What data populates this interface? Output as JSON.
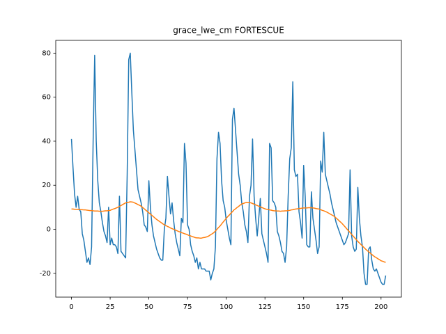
{
  "chart_data": {
    "type": "line",
    "title": "grace_lwe_cm FORTESCUE",
    "x": [
      0,
      1,
      2,
      3,
      4,
      5,
      6,
      7,
      8,
      9,
      10,
      11,
      12,
      13,
      14,
      15,
      16,
      17,
      18,
      19,
      20,
      21,
      22,
      23,
      24,
      25,
      26,
      27,
      28,
      29,
      30,
      31,
      32,
      33,
      34,
      35,
      36,
      37,
      38,
      39,
      40,
      41,
      42,
      43,
      44,
      45,
      46,
      47,
      48,
      49,
      50,
      51,
      52,
      53,
      54,
      55,
      56,
      57,
      58,
      59,
      60,
      61,
      62,
      63,
      64,
      65,
      66,
      67,
      68,
      69,
      70,
      71,
      72,
      73,
      74,
      75,
      76,
      77,
      78,
      79,
      80,
      81,
      82,
      83,
      84,
      85,
      86,
      87,
      88,
      89,
      90,
      91,
      92,
      93,
      94,
      95,
      96,
      97,
      98,
      99,
      100,
      101,
      102,
      103,
      104,
      105,
      106,
      107,
      108,
      109,
      110,
      111,
      112,
      113,
      114,
      115,
      116,
      117,
      118,
      119,
      120,
      121,
      122,
      123,
      124,
      125,
      126,
      127,
      128,
      129,
      130,
      131,
      132,
      133,
      134,
      135,
      136,
      137,
      138,
      139,
      140,
      141,
      142,
      143,
      144,
      145,
      146,
      147,
      148,
      149,
      150,
      151,
      152,
      153,
      154,
      155,
      156,
      157,
      158,
      159,
      160,
      161,
      162,
      163,
      164,
      165,
      166,
      167,
      168,
      169,
      170,
      171,
      172,
      173,
      174,
      175,
      176,
      177,
      178,
      179,
      180,
      181,
      182,
      183,
      184,
      185,
      186,
      187,
      188,
      189,
      190,
      191,
      192,
      193,
      194,
      195,
      196,
      197,
      198,
      199,
      200,
      201,
      202,
      203
    ],
    "series": [
      {
        "color": "#1f77b4",
        "values": [
          41,
          28,
          16,
          10,
          15,
          9,
          8,
          -2,
          -5,
          -10,
          -15,
          -13,
          -16,
          -8,
          40,
          79,
          40,
          22,
          12,
          8,
          3,
          -1,
          -3,
          -6,
          10,
          -7,
          -4,
          -7,
          -7,
          -8,
          -11,
          15,
          -10,
          -11,
          -12,
          -13,
          25,
          77,
          80,
          62,
          45,
          36,
          27,
          18,
          15,
          12,
          8,
          2,
          1,
          -1,
          22,
          10,
          2,
          -3,
          -6,
          -9,
          -11,
          -13,
          -14,
          -14,
          0,
          5,
          24,
          15,
          7,
          12,
          4,
          -2,
          -6,
          -9,
          -12,
          5,
          3,
          39,
          30,
          2,
          0,
          -7,
          -10,
          -12,
          -15,
          -13,
          -18,
          -15,
          -18,
          -18,
          -18,
          -19,
          -19,
          -19,
          -23,
          -20,
          -18,
          -8,
          32,
          44,
          39,
          22,
          13,
          10,
          4,
          0,
          -4,
          -7,
          50,
          55,
          45,
          35,
          25,
          20,
          12,
          8,
          2,
          -1,
          -6,
          15,
          20,
          41,
          15,
          5,
          -3,
          5,
          14,
          -2,
          -5,
          -8,
          -11,
          -15,
          39,
          37,
          13,
          12,
          10,
          -1,
          -3,
          -6,
          -10,
          -11,
          -15,
          -8,
          15,
          32,
          37,
          67,
          27,
          24,
          25,
          8,
          3,
          -4,
          29,
          15,
          -7,
          -8,
          -8,
          17,
          5,
          0,
          -5,
          -11,
          -8,
          31,
          26,
          44,
          25,
          22,
          19,
          16,
          12,
          9,
          6,
          3,
          1,
          -1,
          -3,
          -5,
          -7,
          -6,
          -4,
          -2,
          27,
          -3,
          -8,
          -10,
          -9,
          19,
          5,
          -3,
          -8,
          -20,
          -25,
          -25,
          -9,
          -8,
          -14,
          -18,
          -19,
          -18,
          -20,
          -22,
          -24,
          -25,
          -25,
          -21
        ]
      },
      {
        "color": "#ff7f0e",
        "values": [
          9.2,
          9.2,
          9.1,
          9.1,
          9.0,
          9.0,
          8.9,
          8.9,
          8.8,
          8.8,
          8.7,
          8.6,
          8.5,
          8.5,
          8.4,
          8.3,
          8.3,
          8.3,
          8.2,
          8.2,
          8.2,
          8.3,
          8.4,
          8.4,
          8.5,
          8.6,
          8.9,
          9.2,
          9.4,
          9.7,
          10.0,
          10.4,
          10.8,
          11.2,
          11.6,
          12.0,
          12.2,
          12.3,
          12.5,
          12.4,
          12.3,
          11.9,
          11.6,
          11.2,
          10.9,
          10.5,
          9.9,
          9.3,
          8.7,
          8.1,
          7.5,
          6.9,
          6.3,
          5.7,
          5.1,
          4.5,
          4.0,
          3.5,
          3.0,
          2.5,
          2.0,
          1.7,
          1.3,
          1.0,
          0.6,
          0.3,
          0.0,
          -0.3,
          -0.6,
          -0.9,
          -1.2,
          -1.5,
          -1.7,
          -2.0,
          -2.2,
          -2.5,
          -2.8,
          -3.0,
          -3.3,
          -3.5,
          -3.8,
          -3.9,
          -3.9,
          -4.0,
          -4.0,
          -3.8,
          -3.7,
          -3.5,
          -3.3,
          -2.9,
          -2.4,
          -2.0,
          -1.5,
          -0.8,
          0.0,
          0.8,
          1.5,
          2.4,
          3.3,
          4.1,
          5.0,
          5.8,
          6.5,
          7.3,
          8.0,
          8.8,
          9.3,
          9.9,
          10.4,
          11.0,
          11.5,
          11.7,
          12.0,
          12.2,
          12.1,
          12.1,
          12.0,
          11.7,
          11.4,
          11.1,
          10.8,
          10.5,
          10.2,
          9.9,
          9.6,
          9.3,
          9.1,
          9.0,
          8.8,
          8.7,
          8.5,
          8.4,
          8.4,
          8.3,
          8.3,
          8.2,
          8.3,
          8.3,
          8.4,
          8.4,
          8.5,
          8.6,
          8.8,
          8.9,
          9.1,
          9.2,
          9.3,
          9.4,
          9.5,
          9.6,
          9.7,
          9.7,
          9.7,
          9.8,
          9.8,
          9.8,
          9.7,
          9.6,
          9.4,
          9.3,
          9.2,
          8.9,
          8.6,
          8.4,
          8.1,
          7.8,
          7.4,
          7.0,
          6.6,
          6.2,
          5.8,
          5.1,
          4.5,
          3.8,
          3.2,
          2.5,
          1.7,
          0.9,
          0.1,
          -0.7,
          -1.5,
          -2.3,
          -3.1,
          -3.9,
          -4.7,
          -5.5,
          -6.2,
          -6.9,
          -7.6,
          -8.3,
          -9.0,
          -9.6,
          -10.2,
          -10.8,
          -11.4,
          -12.0,
          -12.5,
          -12.9,
          -13.4,
          -13.8,
          -14.3,
          -14.5,
          -14.8,
          -15.0
        ]
      }
    ],
    "xlim": [
      -10.15,
      213.15
    ],
    "xticks": [
      0,
      25,
      50,
      75,
      100,
      125,
      150,
      175,
      200
    ],
    "ylim": [
      -30.8,
      85.8
    ],
    "yticks": [
      -20,
      0,
      20,
      40,
      60,
      80
    ],
    "grid": false
  }
}
